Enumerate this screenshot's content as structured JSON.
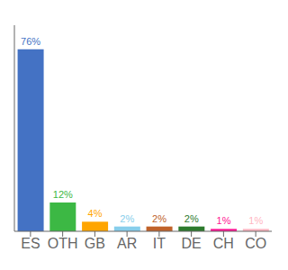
{
  "chart_data": {
    "type": "bar",
    "categories": [
      "ES",
      "OTH",
      "GB",
      "AR",
      "IT",
      "DE",
      "CH",
      "CO"
    ],
    "values": [
      76,
      12,
      4,
      2,
      2,
      2,
      1,
      1
    ],
    "value_labels": [
      "76%",
      "12%",
      "4%",
      "2%",
      "2%",
      "2%",
      "1%",
      "1%"
    ],
    "colors": [
      "#4472C4",
      "#3CB844",
      "#FFA500",
      "#87CEEB",
      "#C0622A",
      "#2D7A2D",
      "#FF1493",
      "#FFB6C1"
    ],
    "ylim": [
      0,
      86
    ],
    "data_labels": true,
    "tick_labels": "x",
    "grid": false
  }
}
